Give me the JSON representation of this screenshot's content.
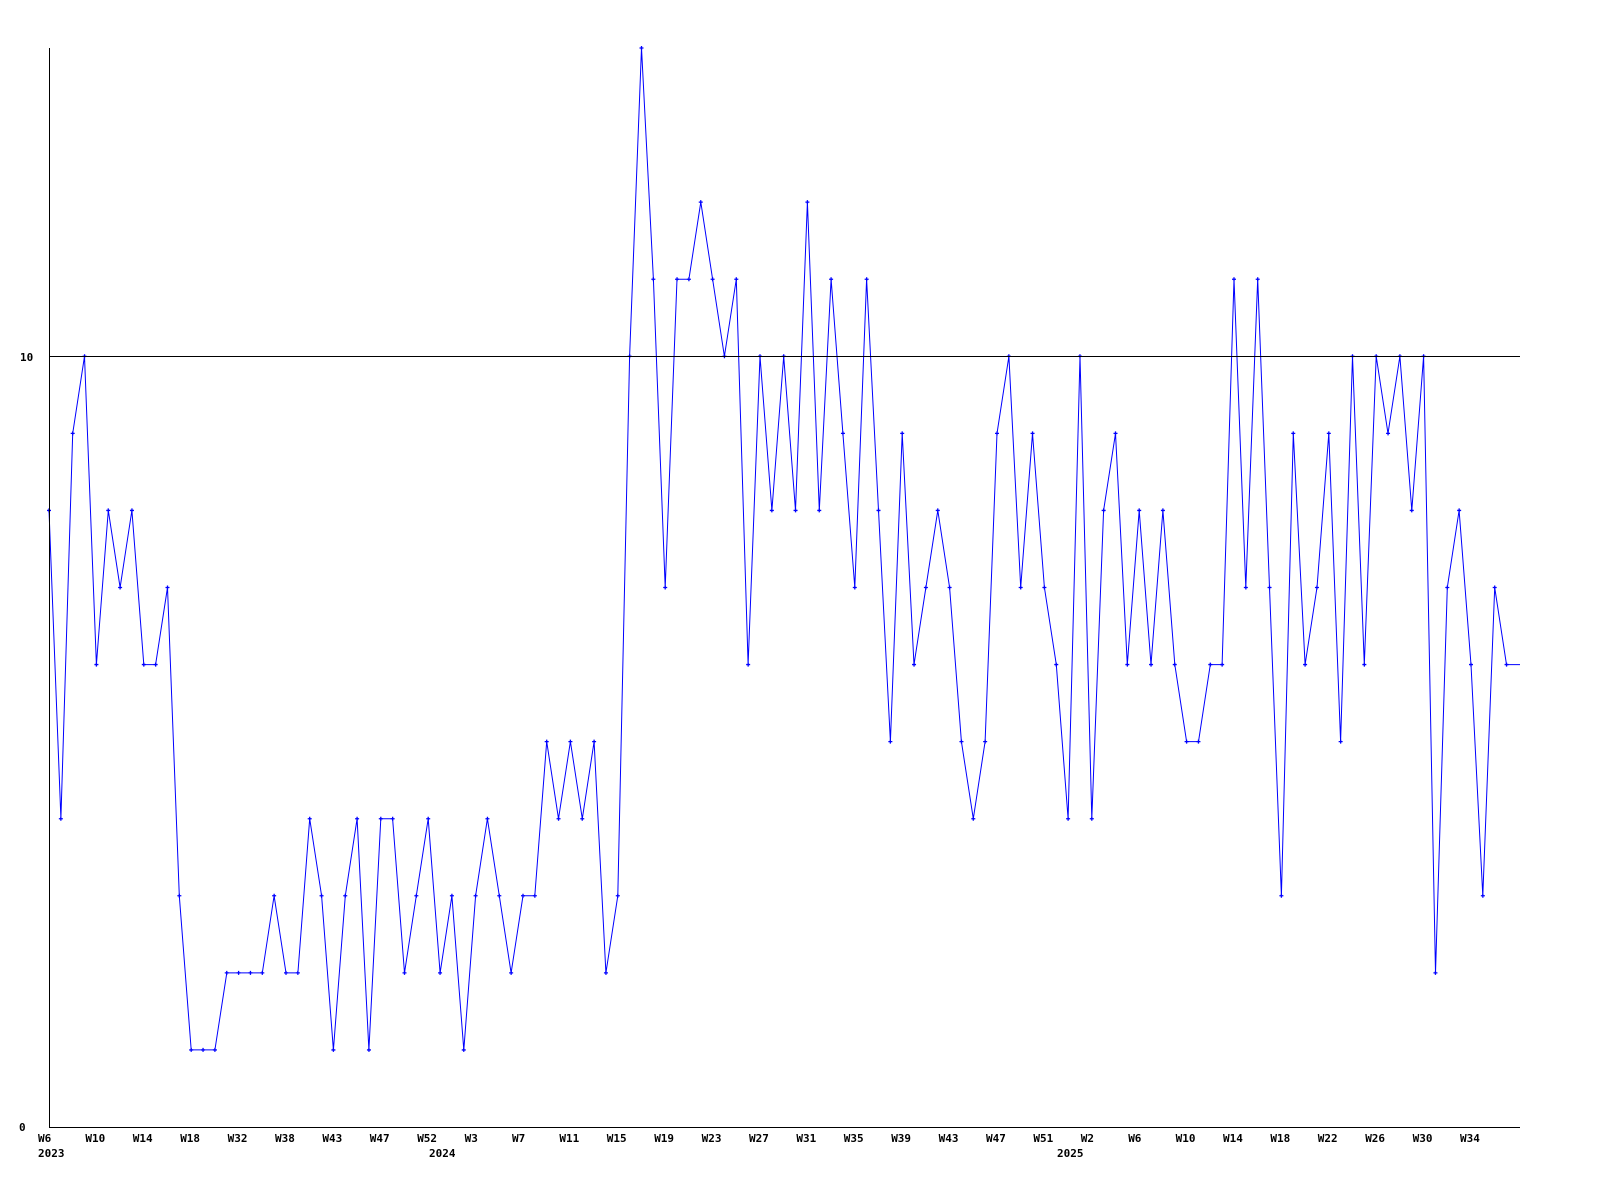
{
  "chart_data": {
    "type": "line",
    "title": "",
    "xlabel": "",
    "ylabel": "",
    "ylim": [
      0,
      14
    ],
    "y_ticks": [
      "0",
      "10"
    ],
    "reference_line": 10,
    "grid": false,
    "colors": {
      "series": "#0000ff",
      "axis": "#000000"
    },
    "x_tick_labels": [
      "W6",
      "W10",
      "W14",
      "W18",
      "W32",
      "W38",
      "W43",
      "W47",
      "W52",
      "W3",
      "W7",
      "W11",
      "W15",
      "W19",
      "W23",
      "W27",
      "W31",
      "W35",
      "W39",
      "W43",
      "W47",
      "W51",
      "W2",
      "W6",
      "W10",
      "W14",
      "W18",
      "W22",
      "W26",
      "W30",
      "W34"
    ],
    "year_labels": [
      "2023",
      "2024",
      "2025"
    ],
    "series": [
      {
        "values": [
          8,
          4,
          9,
          10,
          6,
          8,
          7,
          8,
          6,
          6,
          7,
          3,
          1,
          1,
          1,
          2,
          2,
          2,
          2,
          3,
          2,
          2,
          4,
          3,
          1,
          3,
          4,
          1,
          4,
          4,
          2,
          3,
          4,
          2,
          3,
          1,
          3,
          4,
          3,
          2,
          3,
          3,
          5,
          4,
          5,
          4,
          5,
          2,
          3,
          10,
          14,
          11,
          7,
          11,
          11,
          12,
          11,
          10,
          11,
          6,
          10,
          8,
          10,
          8,
          12,
          8,
          11,
          9,
          7,
          11,
          8,
          5,
          9,
          6,
          7,
          8,
          7,
          5,
          4,
          5,
          9,
          10,
          7,
          9,
          7,
          6,
          4,
          10,
          4,
          8,
          9,
          6,
          8,
          6,
          8,
          6,
          5,
          5,
          6,
          6,
          11,
          7,
          11,
          7,
          3,
          9,
          6,
          7,
          9,
          5,
          10,
          6,
          10,
          9,
          10,
          8,
          10,
          2,
          7,
          8,
          6,
          3,
          7,
          6
        ]
      }
    ]
  }
}
